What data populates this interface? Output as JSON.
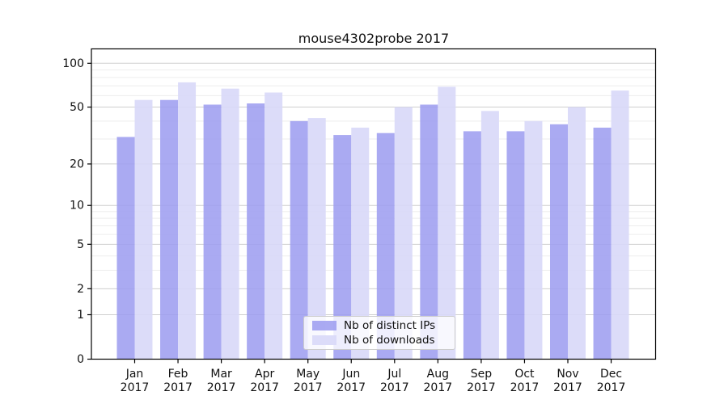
{
  "title": "mouse4302probe 2017",
  "legend": {
    "items": [
      {
        "label": "Nb of distinct IPs",
        "color": "#9b9bf0",
        "opacity": 0.85
      },
      {
        "label": "Nb of downloads",
        "color": "#d8d8f8",
        "opacity": 0.9
      }
    ]
  },
  "chart_data": {
    "type": "bar",
    "title": "mouse4302probe 2017",
    "categories": [
      "Jan 2017",
      "Feb 2017",
      "Mar 2017",
      "Apr 2017",
      "May 2017",
      "Jun 2017",
      "Jul 2017",
      "Aug 2017",
      "Sep 2017",
      "Oct 2017",
      "Nov 2017",
      "Dec 2017"
    ],
    "series": [
      {
        "name": "Nb of distinct IPs",
        "color": "#9b9bf0",
        "opacity": 0.85,
        "values": [
          31,
          56,
          52,
          53,
          40,
          32,
          33,
          52,
          34,
          34,
          38,
          36
        ]
      },
      {
        "name": "Nb of downloads",
        "color": "#d8d8f8",
        "opacity": 0.9,
        "values": [
          56,
          74,
          67,
          63,
          42,
          36,
          50,
          69,
          47,
          40,
          50,
          65
        ]
      }
    ],
    "yscale": "log1p",
    "ylim": [
      0,
      125
    ],
    "ytick_values": [
      0,
      1,
      2,
      5,
      10,
      20,
      50,
      100
    ],
    "ytick_labels": [
      "0",
      "1",
      "2",
      "5",
      "10",
      "20",
      "50",
      "100"
    ],
    "minor_ytick_values": [
      3,
      4,
      6,
      7,
      8,
      9,
      30,
      40,
      60,
      70,
      80,
      90
    ],
    "grid": true,
    "legend_position": "lower center",
    "colors": {
      "major_grid": "#cfcfcf",
      "minor_grid": "#ededed",
      "spine": "#000000",
      "tick": "#000000",
      "text": "#111111"
    }
  }
}
